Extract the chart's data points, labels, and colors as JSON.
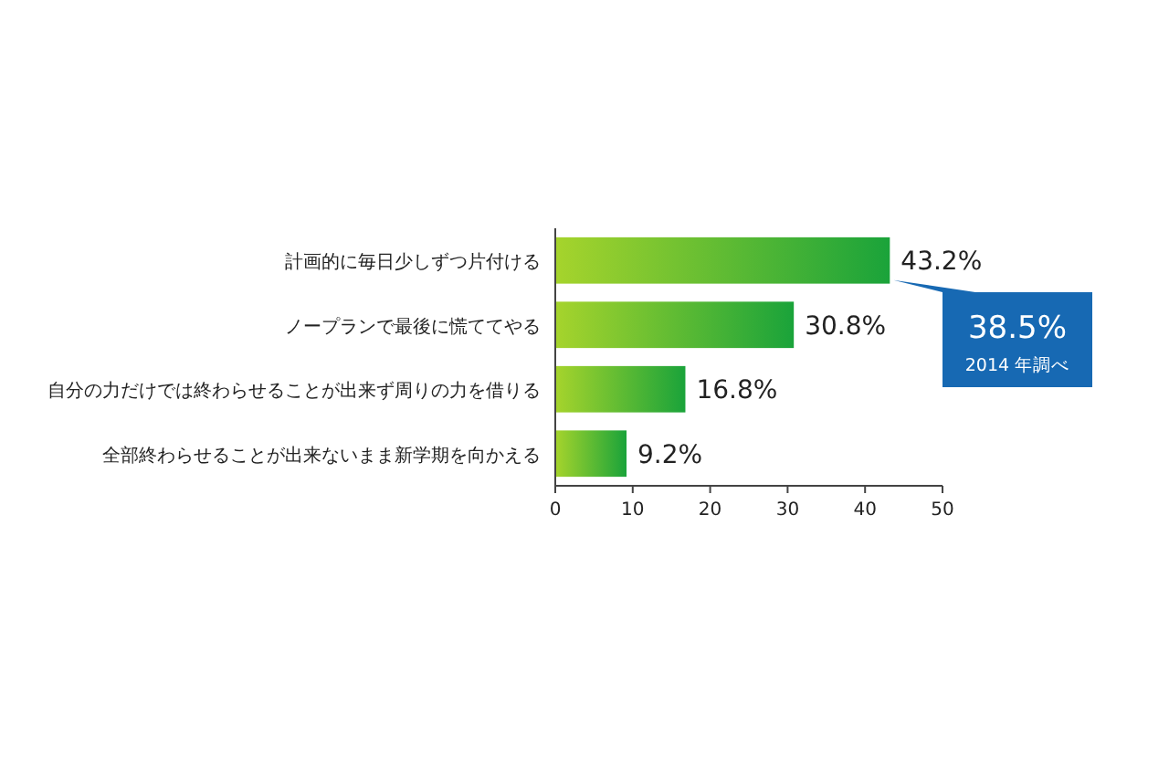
{
  "chart_data": {
    "type": "bar",
    "orientation": "horizontal",
    "categories": [
      "計画的に毎日少しずつ片付ける",
      "ノープランで最後に慌ててやる",
      "自分の力だけでは終わらせることが出来ず周りの力を借りる",
      "全部終わらせることが出来ないまま新学期を向かえる"
    ],
    "values": [
      43.2,
      30.8,
      16.8,
      9.2
    ],
    "value_labels": [
      "43.2%",
      "30.8%",
      "16.8%",
      "9.2%"
    ],
    "color": "#1aa33a",
    "xlim": [
      0,
      50
    ],
    "xticks": [
      0,
      10,
      20,
      30,
      40,
      50
    ],
    "annotations": [
      "38.5%",
      "2014 年調べ"
    ]
  }
}
